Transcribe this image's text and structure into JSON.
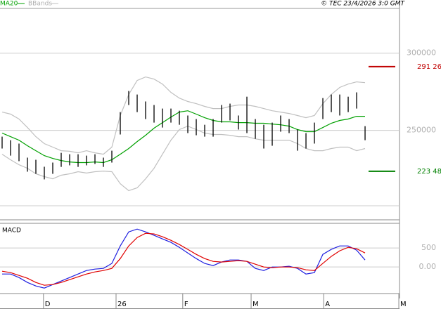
{
  "source": "© TEC 23/4/2026 3:0 GMT",
  "chart_data": [
    {
      "type": "ohlc",
      "x": [
        0,
        1,
        2,
        3,
        4,
        5,
        6,
        7,
        8,
        9,
        10,
        11,
        12,
        13,
        14,
        15,
        16,
        17,
        18,
        19,
        20,
        21,
        22,
        23,
        24,
        25,
        26,
        27,
        28,
        29,
        30,
        31,
        32,
        33,
        34,
        35,
        36,
        37,
        38,
        39,
        40,
        41,
        42,
        43
      ],
      "xlim": [
        -0.25,
        47.08
      ],
      "xticks": [
        {
          "value": 4.9,
          "label": "D"
        },
        {
          "value": 13.5,
          "label": "26"
        },
        {
          "value": 21.4,
          "label": "F"
        },
        {
          "value": 29.5,
          "label": "M"
        },
        {
          "value": 38.1,
          "label": "A"
        },
        {
          "value": 47,
          "label": "M"
        }
      ],
      "ylim": [
        192000,
        329000
      ],
      "yticks": [
        250000,
        300000
      ],
      "grid": true,
      "color": "#000000",
      "high": [
        245900,
        243600,
        241400,
        232300,
        230900,
        226400,
        229100,
        235400,
        234500,
        234500,
        233600,
        234500,
        232300,
        236800,
        261800,
        275500,
        273200,
        268700,
        266400,
        264100,
        264100,
        262700,
        259600,
        257300,
        253600,
        257300,
        266400,
        267300,
        259600,
        271800,
        257300,
        253600,
        255000,
        259600,
        257300,
        250500,
        248200,
        255000,
        270900,
        273200,
        273200,
        271800,
        274600,
        252700
      ],
      "low": [
        238200,
        233600,
        230000,
        223200,
        221800,
        218200,
        221800,
        226300,
        227300,
        226300,
        227300,
        228200,
        226300,
        229100,
        247300,
        266400,
        261800,
        257300,
        255000,
        251800,
        255000,
        253600,
        248200,
        246800,
        245900,
        245900,
        255000,
        256400,
        250500,
        248200,
        244500,
        238200,
        240000,
        249100,
        248200,
        236800,
        238200,
        241400,
        257300,
        261800,
        259600,
        261800,
        264100,
        243600
      ],
      "series": [
        {
          "name": "MA20",
          "color": "#00a000",
          "values": [
            248200,
            245900,
            243600,
            240000,
            236800,
            233600,
            231800,
            230400,
            229500,
            229100,
            229100,
            229500,
            229100,
            230900,
            234500,
            238200,
            242700,
            246800,
            251400,
            255000,
            258600,
            261800,
            262700,
            260500,
            258200,
            256400,
            255500,
            255500,
            255000,
            255000,
            254600,
            254600,
            254100,
            253600,
            252700,
            250500,
            249100,
            249100,
            251800,
            254600,
            256400,
            257300,
            259100,
            259100
          ]
        },
        {
          "name": "BBands",
          "color": "#c0c0c0",
          "upper": [
            261800,
            260500,
            257300,
            251800,
            245900,
            241400,
            239100,
            236800,
            236400,
            235400,
            236800,
            235400,
            234500,
            239100,
            259600,
            273200,
            282300,
            284600,
            283200,
            280000,
            274600,
            270900,
            268700,
            267300,
            265500,
            264100,
            264100,
            265500,
            266400,
            266400,
            265500,
            264100,
            262700,
            261800,
            260900,
            259600,
            258200,
            259600,
            267300,
            273200,
            277800,
            280000,
            281400,
            280900
          ],
          "lower": [
            234500,
            230900,
            227700,
            225400,
            221800,
            220000,
            218600,
            220900,
            221800,
            223200,
            222300,
            223200,
            223600,
            223200,
            215400,
            210900,
            212700,
            218600,
            225400,
            234500,
            243600,
            250500,
            252700,
            250500,
            248200,
            247300,
            247300,
            246800,
            245900,
            245900,
            244500,
            243600,
            243600,
            243600,
            243600,
            241400,
            238200,
            236800,
            236800,
            238200,
            239100,
            239100,
            236800,
            238200
          ]
        }
      ],
      "levels": [
        {
          "value": 291260,
          "label": "291 26",
          "color": "#c00000"
        },
        {
          "value": 223480,
          "label": "223 48",
          "color": "#008000"
        }
      ]
    },
    {
      "type": "line",
      "title": "MACD",
      "xlim": [
        -0.25,
        47.08
      ],
      "ylim": [
        -700,
        1150
      ],
      "yticks": [
        {
          "value": 0,
          "label": "0.00"
        },
        500
      ],
      "grid": true,
      "series": [
        {
          "color": "#2020e0",
          "values": [
            -185,
            -185,
            -278,
            -407,
            -500,
            -555,
            -463,
            -370,
            -278,
            -185,
            -93,
            -56,
            -37,
            93,
            555,
            925,
            999,
            925,
            833,
            740,
            648,
            518,
            370,
            222,
            93,
            37,
            130,
            185,
            185,
            148,
            -37,
            -93,
            0,
            0,
            19,
            -37,
            -185,
            -148,
            333,
            463,
            555,
            555,
            444,
            185
          ]
        },
        {
          "color": "#e00000",
          "values": [
            -111,
            -148,
            -222,
            -296,
            -407,
            -481,
            -463,
            -407,
            -333,
            -259,
            -185,
            -130,
            -93,
            -37,
            222,
            555,
            777,
            888,
            870,
            796,
            703,
            592,
            463,
            333,
            222,
            148,
            130,
            148,
            167,
            148,
            74,
            0,
            -19,
            0,
            0,
            -19,
            -74,
            -93,
            93,
            278,
            426,
            518,
            481,
            370
          ]
        }
      ]
    }
  ]
}
